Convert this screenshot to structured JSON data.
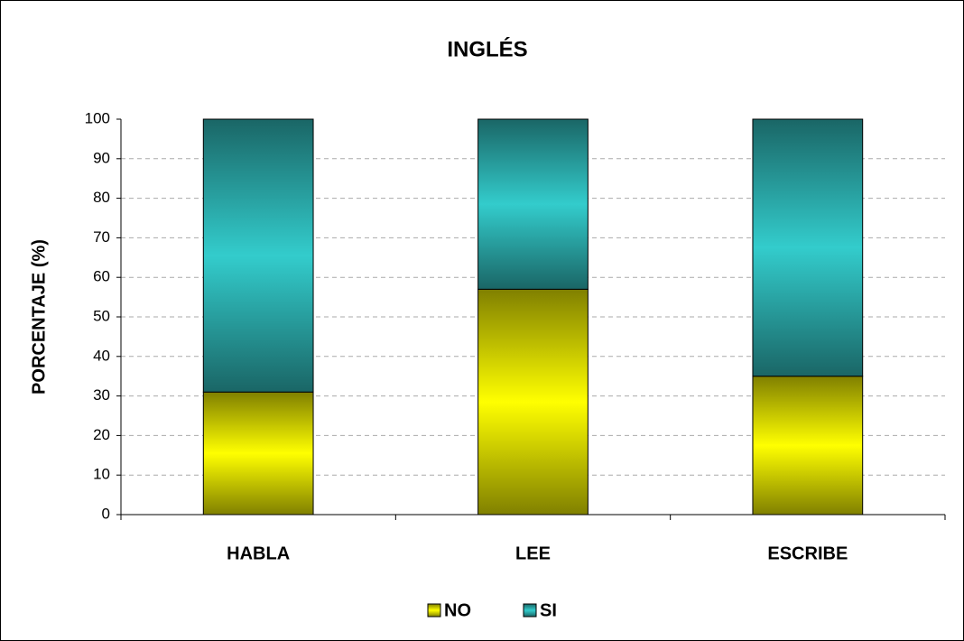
{
  "chart_data": {
    "type": "stacked_bar",
    "title": "INGLÉS",
    "y_label": "PORCENTAJE (%)",
    "categories": [
      "HABLA",
      "LEE",
      "ESCRIBE"
    ],
    "series": [
      {
        "name": "NO",
        "color": "#ffff00",
        "values": [
          31,
          57,
          35
        ]
      },
      {
        "name": "SI",
        "color": "#33cccc",
        "values": [
          69,
          43,
          65
        ]
      }
    ],
    "ylim": [
      0,
      100
    ],
    "yticks": [
      0,
      10,
      20,
      30,
      40,
      50,
      60,
      70,
      80,
      90,
      100
    ],
    "grid": true,
    "legend": "bottom"
  }
}
